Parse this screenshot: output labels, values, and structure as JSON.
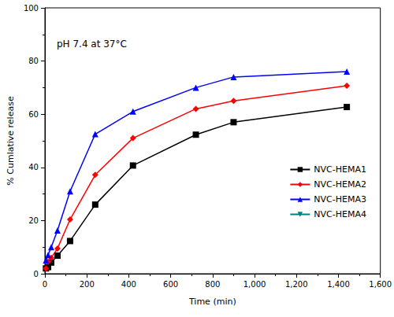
{
  "chart_data": {
    "type": "line",
    "annotation": "pH 7.4 at 37°C",
    "xlabel": "Time (min)",
    "ylabel": "% Cumlative release",
    "x": [
      5,
      15,
      30,
      60,
      120,
      240,
      420,
      720,
      900,
      1440
    ],
    "series": [
      {
        "name": "NVC-HEMA1",
        "color": "#000000",
        "marker": "square",
        "values": [
          2,
          2.5,
          4.2,
          6.8,
          12.3,
          26,
          40.7,
          52.3,
          57,
          62.7
        ]
      },
      {
        "name": "NVC-HEMA2",
        "color": "#ff0000",
        "marker": "diamond",
        "values": [
          2,
          4.5,
          6,
          9.5,
          20.4,
          37.2,
          51,
          62,
          65,
          70.7
        ]
      },
      {
        "name": "NVC-HEMA3",
        "color": "#0000ff",
        "marker": "triangle",
        "values": [
          5,
          7,
          10,
          16.3,
          31,
          52.5,
          61,
          70,
          74,
          76
        ]
      },
      {
        "name": "NVC-HEMA4",
        "color": "#008080",
        "marker": "triangle-down",
        "values": [
          null,
          null,
          null,
          null,
          null,
          null,
          null,
          null,
          null,
          null
        ]
      }
    ],
    "xlim": [
      0,
      1600
    ],
    "xticks": [
      0,
      200,
      400,
      600,
      800,
      1000,
      1200,
      1400,
      1600
    ],
    "ylim": [
      0,
      100
    ],
    "yticks": [
      0,
      20,
      40,
      60,
      80,
      100
    ],
    "grid": false,
    "legend": "lower right"
  }
}
